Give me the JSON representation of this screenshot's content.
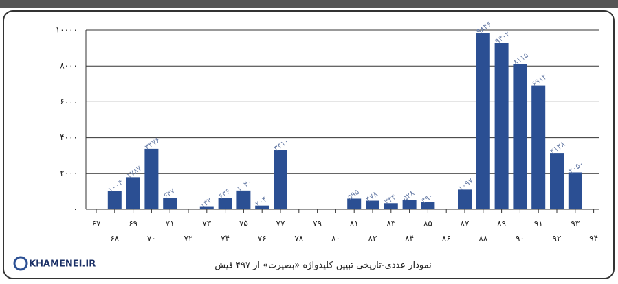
{
  "chart_data": {
    "type": "bar",
    "title": "نمودار عددی-تاریخی تبیین کلیدواژه «بصیرت» از ۴۹۷ فیش",
    "logo_text": "KHAMENEI.IR",
    "categories": [
      "۶۷",
      "۶۸",
      "۶۹",
      "۷۰",
      "۷۱",
      "۷۲",
      "۷۳",
      "۷۴",
      "۷۵",
      "۷۶",
      "۷۷",
      "۷۸",
      "۷۹",
      "۸۰",
      "۸۱",
      "۸۲",
      "۸۳",
      "۸۴",
      "۸۵",
      "۸۶",
      "۸۷",
      "۸۸",
      "۸۹",
      "۹۰",
      "۹۱",
      "۹۲",
      "۹۳",
      "۹۴"
    ],
    "values": [
      0,
      1004,
      1787,
      3376,
      647,
      0,
      132,
      636,
      1040,
      204,
      3310,
      0,
      0,
      0,
      595,
      478,
      334,
      528,
      390,
      0,
      1097,
      9846,
      9302,
      8115,
      6912,
      3138,
      2050,
      0
    ],
    "value_labels": [
      null,
      "۱۰۰۴",
      "۱۷۸۷",
      "۳۳۷۶",
      "۶۴۷",
      null,
      "۱۳۲",
      "۶۳۶",
      "۱۰۴۰",
      "۲۰۴",
      "۳۳۱۰",
      null,
      null,
      null,
      "۵۹۵",
      "۴۷۸",
      "۳۳۴",
      "۵۲۸",
      "۳۹۰",
      null,
      "۱۰۹۷",
      "۹۸۴۶",
      "۹۳۰۲",
      "۸۱۱۵",
      "۶۹۱۲",
      "۳۱۳۸",
      "۲۰۵۰",
      null
    ],
    "color": "#2b4f93",
    "ylim": [
      0,
      10000
    ],
    "yticks": [
      {
        "value": 0,
        "label": "۰"
      },
      {
        "value": 2000,
        "label": "۲۰۰۰"
      },
      {
        "value": 4000,
        "label": "۴۰۰۰"
      },
      {
        "value": 6000,
        "label": "۶۰۰۰"
      },
      {
        "value": 8000,
        "label": "۸۰۰۰"
      },
      {
        "value": 10000,
        "label": "۱۰۰۰۰"
      }
    ],
    "grid": true
  }
}
